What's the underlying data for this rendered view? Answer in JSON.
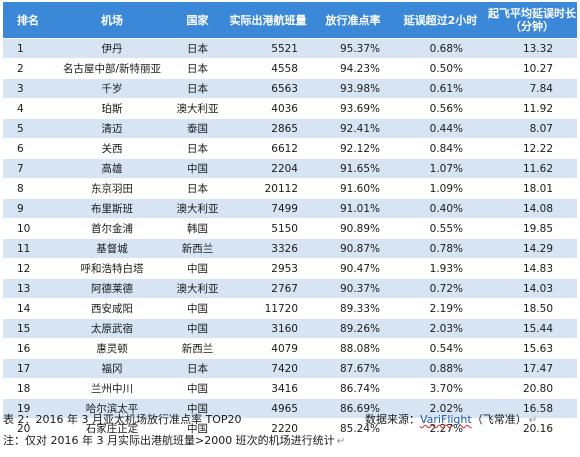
{
  "table": {
    "headers": [
      "排名",
      "机场",
      "国家",
      "实际出港航班量",
      "放行准点率",
      "延误超过2小时",
      "起飞平均延误时长（分钟）"
    ],
    "header_last_line1": "起飞平均延误时长",
    "header_last_line2": "（分钟）",
    "rows": [
      [
        "1",
        "伊丹",
        "日本",
        "5521",
        "95.37%",
        "0.68%",
        "13.32"
      ],
      [
        "2",
        "名古屋中部/新特丽亚",
        "日本",
        "4558",
        "94.23%",
        "0.50%",
        "10.27"
      ],
      [
        "3",
        "千岁",
        "日本",
        "6563",
        "93.98%",
        "0.61%",
        "7.84"
      ],
      [
        "4",
        "珀斯",
        "澳大利亚",
        "4036",
        "93.69%",
        "0.56%",
        "11.92"
      ],
      [
        "5",
        "清迈",
        "泰国",
        "2865",
        "92.41%",
        "0.44%",
        "8.07"
      ],
      [
        "6",
        "关西",
        "日本",
        "6612",
        "92.12%",
        "0.84%",
        "12.22"
      ],
      [
        "7",
        "高雄",
        "中国",
        "2204",
        "91.65%",
        "1.07%",
        "11.62"
      ],
      [
        "8",
        "东京羽田",
        "日本",
        "20112",
        "91.60%",
        "1.09%",
        "18.01"
      ],
      [
        "9",
        "布里斯班",
        "澳大利亚",
        "7499",
        "91.01%",
        "0.40%",
        "14.08"
      ],
      [
        "10",
        "首尔金浦",
        "韩国",
        "5150",
        "90.89%",
        "0.55%",
        "19.85"
      ],
      [
        "11",
        "基督城",
        "新西兰",
        "3326",
        "90.87%",
        "0.78%",
        "14.29"
      ],
      [
        "12",
        "呼和浩特白塔",
        "中国",
        "2953",
        "90.47%",
        "1.93%",
        "14.83"
      ],
      [
        "13",
        "阿德莱德",
        "澳大利亚",
        "2767",
        "90.37%",
        "0.72%",
        "14.03"
      ],
      [
        "14",
        "西安咸阳",
        "中国",
        "11720",
        "89.33%",
        "2.19%",
        "18.50"
      ],
      [
        "15",
        "太原武宿",
        "中国",
        "3160",
        "89.26%",
        "2.03%",
        "15.44"
      ],
      [
        "16",
        "惠灵顿",
        "新西兰",
        "4079",
        "88.08%",
        "0.54%",
        "15.63"
      ],
      [
        "17",
        "福冈",
        "日本",
        "7420",
        "87.67%",
        "0.88%",
        "17.47"
      ],
      [
        "18",
        "兰州中川",
        "中国",
        "3416",
        "86.74%",
        "3.70%",
        "20.80"
      ],
      [
        "19",
        "哈尔滨太平",
        "中国",
        "4965",
        "86.69%",
        "2.02%",
        "16.58"
      ],
      [
        "20",
        "石家庄正定",
        "中国",
        "2220",
        "85.24%",
        "2.27%",
        "20.16"
      ]
    ]
  },
  "caption": "表 2：2016 年 3 月亚太机场放行准点率 TOP20",
  "source_prefix": "数据来源：",
  "source_link": "VariFlight",
  "source_suffix": "（飞常准）",
  "note": "注：仅对 2016 年 3 月实际出港航班量>2000 班次的机场进行统计",
  "colors": {
    "header_bg": "#3b88d8",
    "row_alt": "#d7e4f4"
  }
}
